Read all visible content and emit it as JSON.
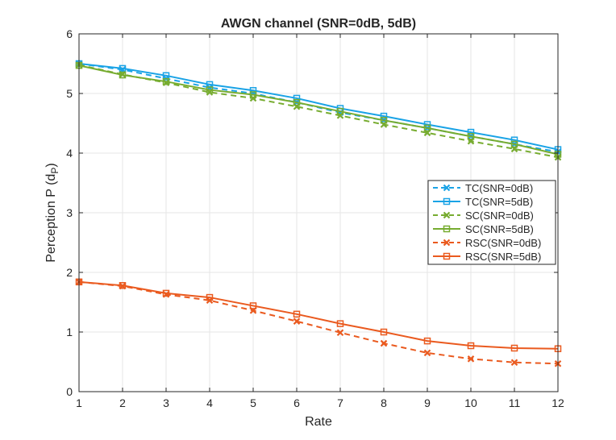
{
  "chart_data": {
    "type": "line",
    "title": "AWGN channel (SNR=0dB, 5dB)",
    "xlabel": "Rate",
    "ylabel": "Perception P (d",
    "ylabel_subscript": "P",
    "ylabel_suffix": ")",
    "xlim": [
      1,
      12
    ],
    "ylim": [
      0,
      6
    ],
    "x": [
      1,
      2,
      3,
      4,
      5,
      6,
      7,
      8,
      9,
      10,
      11,
      12
    ],
    "xticks": [
      "1",
      "2",
      "3",
      "4",
      "5",
      "6",
      "7",
      "8",
      "9",
      "10",
      "11",
      "12"
    ],
    "yticks": [
      "0",
      "1",
      "2",
      "3",
      "4",
      "5",
      "6"
    ],
    "grid": true,
    "legend_position": "right",
    "series": [
      {
        "name": "TC(SNR=0dB)",
        "color": "#1aa3e6",
        "dash": "dashed",
        "marker": "x",
        "values": [
          5.5,
          5.4,
          5.25,
          5.1,
          5.0,
          4.85,
          4.68,
          4.55,
          4.42,
          4.28,
          4.15,
          4.02
        ]
      },
      {
        "name": "TC(SNR=5dB)",
        "color": "#1aa3e6",
        "dash": "solid",
        "marker": "square",
        "values": [
          5.5,
          5.42,
          5.3,
          5.15,
          5.05,
          4.92,
          4.75,
          4.62,
          4.48,
          4.35,
          4.22,
          4.06
        ]
      },
      {
        "name": "SC(SNR=0dB)",
        "color": "#77ac30",
        "dash": "dashed",
        "marker": "x",
        "values": [
          5.48,
          5.32,
          5.18,
          5.02,
          4.92,
          4.78,
          4.63,
          4.48,
          4.34,
          4.2,
          4.07,
          3.93
        ]
      },
      {
        "name": "SC(SNR=5dB)",
        "color": "#77ac30",
        "dash": "solid",
        "marker": "square",
        "values": [
          5.47,
          5.31,
          5.2,
          5.06,
          4.98,
          4.85,
          4.7,
          4.55,
          4.42,
          4.28,
          4.15,
          3.98
        ]
      },
      {
        "name": "RSC(SNR=0dB)",
        "color": "#ea5a1f",
        "dash": "dashed",
        "marker": "x",
        "values": [
          1.84,
          1.77,
          1.63,
          1.53,
          1.36,
          1.18,
          0.99,
          0.81,
          0.65,
          0.55,
          0.49,
          0.47
        ]
      },
      {
        "name": "RSC(SNR=5dB)",
        "color": "#ea5a1f",
        "dash": "solid",
        "marker": "square",
        "values": [
          1.84,
          1.78,
          1.65,
          1.58,
          1.44,
          1.3,
          1.14,
          1.0,
          0.85,
          0.77,
          0.73,
          0.72
        ]
      }
    ]
  }
}
